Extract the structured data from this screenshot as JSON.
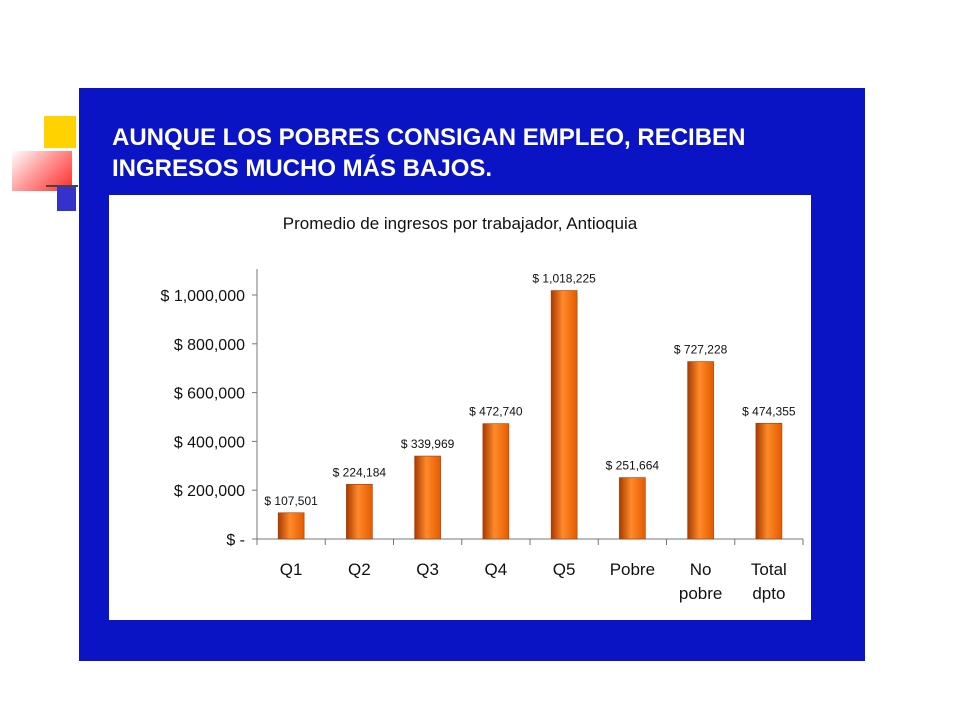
{
  "slide": {
    "title": "AUNQUE LOS POBRES CONSIGAN EMPLEO, RECIBEN INGRESOS MUCHO MÁS BAJOS."
  },
  "colors": {
    "panel": "#0b14c4",
    "bar": "#e35b00",
    "bar_highlight": "#ff8a2a",
    "bar_shadow": "#a83a00"
  },
  "chart_data": {
    "type": "bar",
    "title": "Promedio de ingresos por trabajador, Antioquia",
    "categories": [
      "Q1",
      "Q2",
      "Q3",
      "Q4",
      "Q5",
      "Pobre",
      "No pobre",
      "Total dpto"
    ],
    "category_lines": [
      [
        "Q1"
      ],
      [
        "Q2"
      ],
      [
        "Q3"
      ],
      [
        "Q4"
      ],
      [
        "Q5"
      ],
      [
        "Pobre"
      ],
      [
        "No",
        "pobre"
      ],
      [
        "Total",
        "dpto"
      ]
    ],
    "values": [
      107501,
      224184,
      339969,
      472740,
      1018225,
      251664,
      727228,
      474355
    ],
    "data_labels": [
      "$ 107,501",
      "$ 224,184",
      "$ 339,969",
      "$ 472,740",
      "$ 1,018,225",
      "$ 251,664",
      "$ 727,228",
      "$ 474,355"
    ],
    "y_ticks": [
      0,
      200000,
      400000,
      600000,
      800000,
      1000000
    ],
    "y_tick_labels": [
      "$ -",
      "$ 200,000",
      "$ 400,000",
      "$ 600,000",
      "$ 800,000",
      "$ 1,000,000"
    ],
    "ylim": [
      0,
      1000000
    ],
    "xlabel": "",
    "ylabel": "",
    "grid": false,
    "legend": "none"
  }
}
